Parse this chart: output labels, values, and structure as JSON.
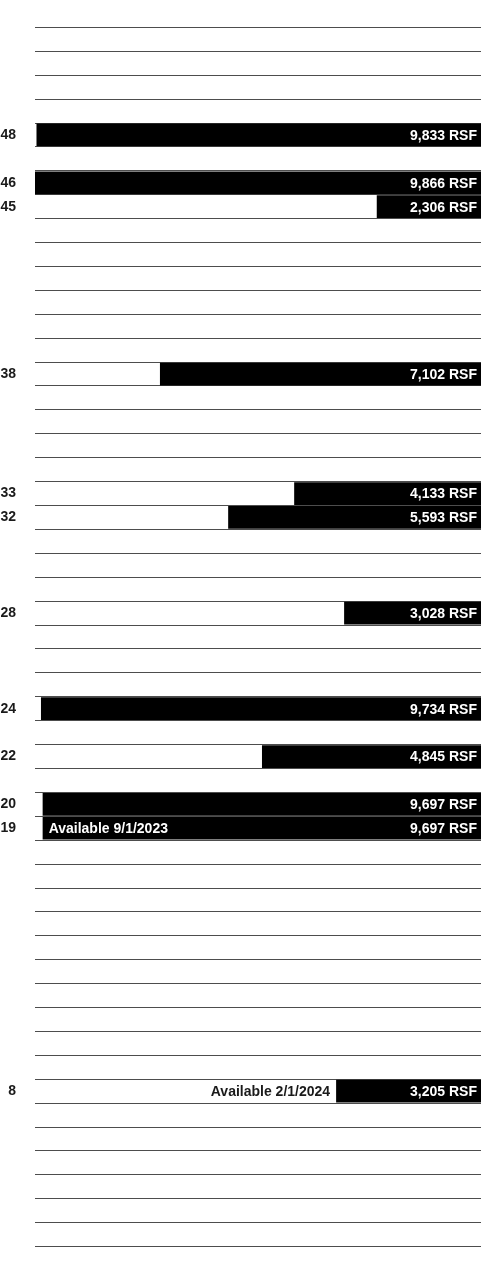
{
  "chart_data": {
    "type": "bar",
    "orientation": "horizontal",
    "grid": "y",
    "tick_labels": "y",
    "color": "#000000",
    "xlim": [
      9866,
      0
    ],
    "categories": [
      null,
      null,
      null,
      null,
      "48",
      null,
      "46",
      "45",
      null,
      null,
      null,
      null,
      null,
      null,
      "38",
      null,
      null,
      null,
      null,
      "33",
      "32",
      null,
      null,
      null,
      "28",
      null,
      null,
      null,
      "24",
      null,
      "22",
      null,
      "20",
      "19",
      null,
      null,
      null,
      null,
      null,
      null,
      null,
      null,
      null,
      null,
      "8",
      null,
      null,
      null,
      null,
      null,
      null
    ],
    "values": [
      null,
      null,
      null,
      null,
      9833,
      null,
      9866,
      2306,
      null,
      null,
      null,
      null,
      null,
      null,
      7102,
      null,
      null,
      null,
      null,
      4133,
      5593,
      null,
      null,
      null,
      3028,
      null,
      null,
      null,
      9734,
      null,
      4845,
      null,
      9697,
      9697,
      null,
      null,
      null,
      null,
      null,
      null,
      null,
      null,
      null,
      null,
      3205,
      null,
      null,
      null,
      null,
      null,
      null
    ],
    "value_labels": [
      null,
      null,
      null,
      null,
      "9,833 RSF",
      null,
      "9,866 RSF",
      "2,306 RSF",
      null,
      null,
      null,
      null,
      null,
      null,
      "7,102 RSF",
      null,
      null,
      null,
      null,
      "4,133 RSF",
      "5,593 RSF",
      null,
      null,
      null,
      "3,028 RSF",
      null,
      null,
      null,
      "9,734 RSF",
      null,
      "4,845 RSF",
      null,
      "9,697 RSF",
      "9,697 RSF",
      null,
      null,
      null,
      null,
      null,
      null,
      null,
      null,
      null,
      null,
      "3,205 RSF",
      null,
      null,
      null,
      null,
      null,
      null
    ],
    "annotations": [
      {
        "text": "Available 9/1/2023",
        "y": "19"
      },
      {
        "text": "Available 2/1/2024",
        "x": 3205,
        "y": "8"
      }
    ]
  }
}
